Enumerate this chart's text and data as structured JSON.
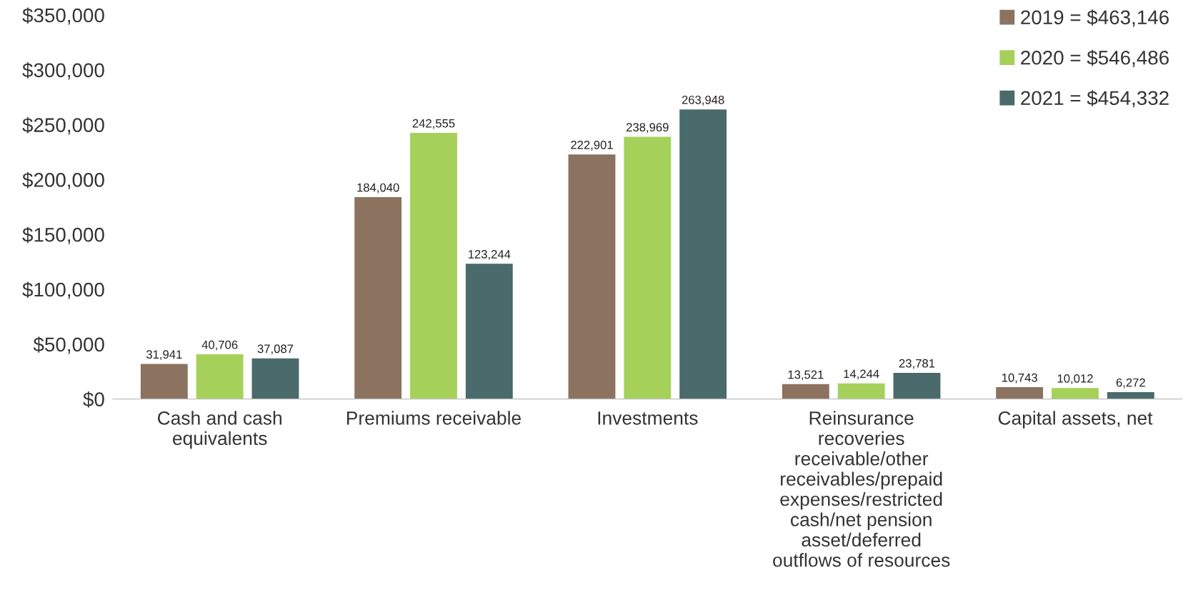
{
  "chart_data": {
    "type": "bar",
    "categories": [
      "Cash and cash\nequivalents",
      "Premiums receivable",
      "Investments",
      "Reinsurance\nrecoveries\nreceivable/other\nreceivables/prepaid\nexpenses/restricted\ncash/net pension\nasset/deferred\noutflows of resources",
      "Capital assets, net"
    ],
    "series": [
      {
        "name": "2019 = $463,146",
        "color": "#8b7360",
        "values": [
          31941,
          184040,
          222901,
          13521,
          10743
        ],
        "value_labels": [
          "31,941",
          "184,040",
          "222,901",
          "13,521",
          "10,743"
        ]
      },
      {
        "name": "2020 = $546,486",
        "color": "#a5d15b",
        "values": [
          40706,
          242555,
          238969,
          14244,
          10012
        ],
        "value_labels": [
          "40,706",
          "242,555",
          "238,969",
          "14,244",
          "10,012"
        ]
      },
      {
        "name": "2021 = $454,332",
        "color": "#4a6a6b",
        "values": [
          37087,
          123244,
          263948,
          23781,
          6272
        ],
        "value_labels": [
          "37,087",
          "123,244",
          "263,948",
          "23,781",
          "6,272"
        ]
      }
    ],
    "ylim": [
      0,
      350000
    ],
    "yticks": [
      {
        "value": 0,
        "label": "$0"
      },
      {
        "value": 50000,
        "label": "$50,000"
      },
      {
        "value": 100000,
        "label": "$100,000"
      },
      {
        "value": 150000,
        "label": "$150,000"
      },
      {
        "value": 200000,
        "label": "$200,000"
      },
      {
        "value": 250000,
        "label": "$250,000"
      },
      {
        "value": 300000,
        "label": "$300,000"
      },
      {
        "value": 350000,
        "label": "$350,000"
      }
    ],
    "grid": false,
    "legend": "top right"
  }
}
